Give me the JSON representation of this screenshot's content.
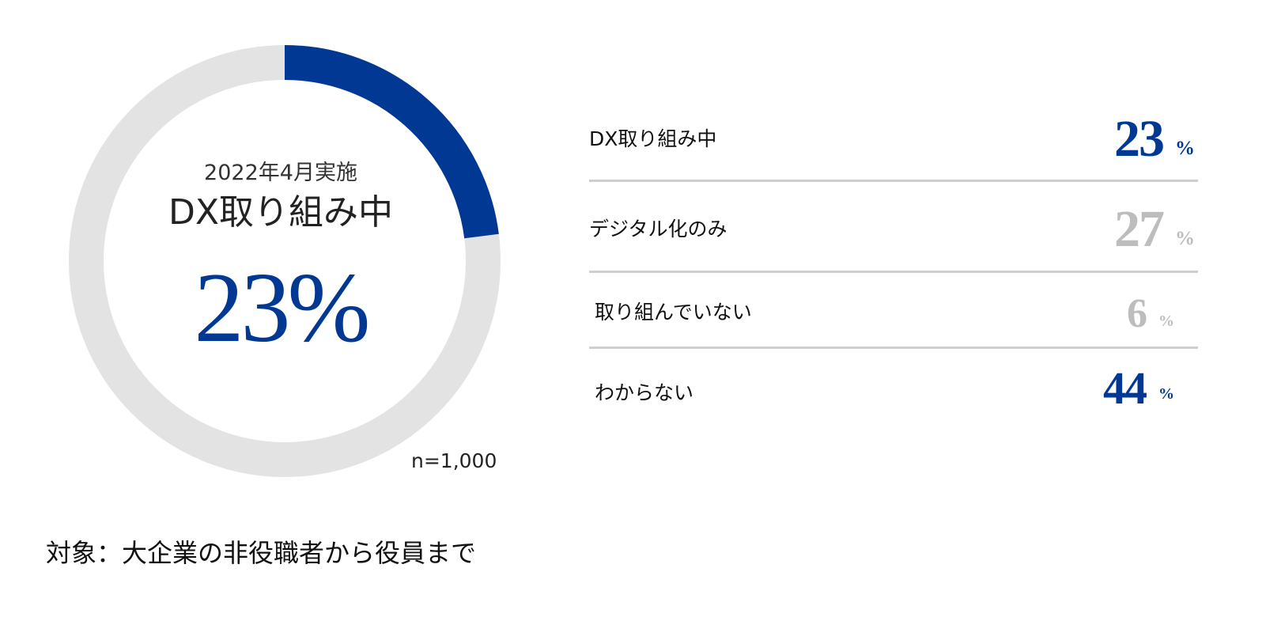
{
  "colors": {
    "accent": "#003894",
    "muted": "#bdbdbd",
    "track": "#e3e3e3"
  },
  "chart_data": [
    {
      "type": "pie",
      "categories": [
        "DX取り組み中"
      ],
      "values": [
        23
      ],
      "unit": "%",
      "title": "DX取り組み中",
      "subtitle": "2022年4月実施",
      "center_value": "23%",
      "note": "n=1,000"
    },
    {
      "type": "table",
      "columns": [
        "",
        "%"
      ],
      "rows": [
        {
          "label": "DX取り組み中",
          "value": "23",
          "unit": "%",
          "highlight": true
        },
        {
          "label": "デジタル化のみ",
          "value": "27",
          "unit": "%",
          "highlight": false
        },
        {
          "label": "取り組んでいない",
          "value": "6",
          "unit": "%",
          "highlight": false
        },
        {
          "label": "わからない",
          "value": "44",
          "unit": "%",
          "highlight": true
        }
      ]
    }
  ],
  "footnote": "対象：大企業の非役職者から役員まで"
}
